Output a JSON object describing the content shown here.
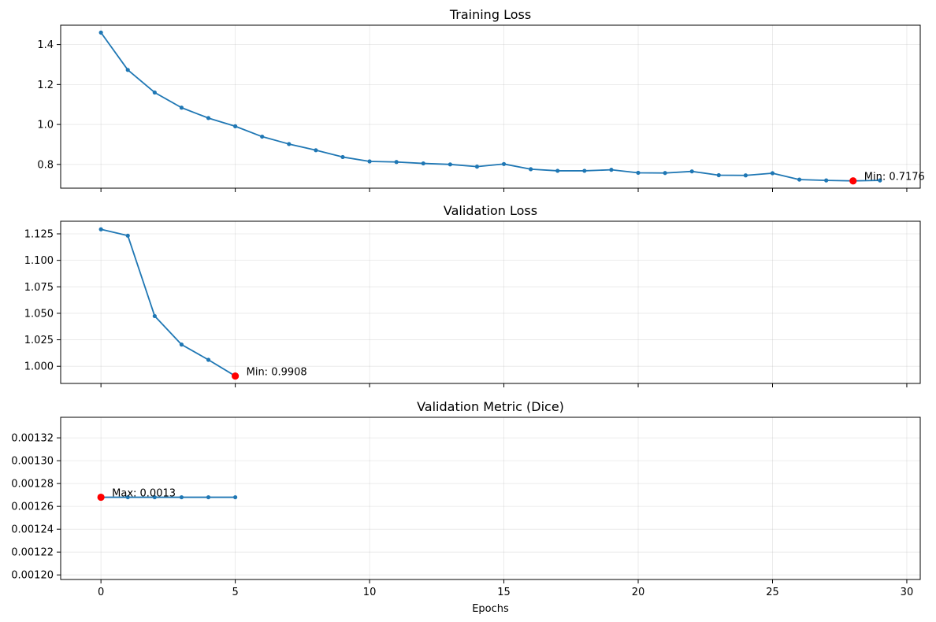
{
  "chart_data": [
    {
      "type": "line",
      "title": "Training Loss",
      "xlabel": "",
      "ylabel": "",
      "xlim": [
        -1.5,
        30.5
      ],
      "ylim": [
        0.681,
        1.497
      ],
      "xticks": [
        0,
        5,
        10,
        15,
        20,
        25,
        30
      ],
      "xtick_labels_visible": false,
      "yticks": [
        0.8,
        1.0,
        1.2,
        1.4
      ],
      "ytick_labels": [
        "0.8",
        "1.0",
        "1.2",
        "1.4"
      ],
      "grid": true,
      "color": "#1f77b4",
      "x": [
        0,
        1,
        2,
        3,
        4,
        5,
        6,
        7,
        8,
        9,
        10,
        11,
        12,
        13,
        14,
        15,
        16,
        17,
        18,
        19,
        20,
        21,
        22,
        23,
        24,
        25,
        26,
        27,
        28,
        29
      ],
      "values": [
        1.46,
        1.273,
        1.16,
        1.084,
        1.032,
        0.991,
        0.939,
        0.902,
        0.871,
        0.837,
        0.815,
        0.812,
        0.805,
        0.8,
        0.789,
        0.802,
        0.776,
        0.768,
        0.768,
        0.773,
        0.758,
        0.757,
        0.765,
        0.746,
        0.745,
        0.756,
        0.724,
        0.72,
        0.7176,
        0.72
      ],
      "highlight": {
        "x": 28,
        "y": 0.7176,
        "color": "#ff0000",
        "label": "Min: 0.7176"
      }
    },
    {
      "type": "line",
      "title": "Validation Loss",
      "xlabel": "",
      "ylabel": "",
      "xlim": [
        -1.5,
        30.5
      ],
      "ylim": [
        0.9838,
        1.1369
      ],
      "xticks": [
        0,
        5,
        10,
        15,
        20,
        25,
        30
      ],
      "xtick_labels_visible": false,
      "yticks": [
        1.0,
        1.025,
        1.05,
        1.075,
        1.1,
        1.125
      ],
      "ytick_labels": [
        "1.000",
        "1.025",
        "1.050",
        "1.075",
        "1.100",
        "1.125"
      ],
      "grid": true,
      "color": "#1f77b4",
      "x": [
        0,
        1,
        2,
        3,
        4,
        5
      ],
      "values": [
        1.1293,
        1.1233,
        1.0474,
        1.0205,
        1.0061,
        0.9908
      ],
      "highlight": {
        "x": 5,
        "y": 0.9908,
        "color": "#ff0000",
        "label": "Min: 0.9908"
      }
    },
    {
      "type": "line",
      "title": "Validation Metric (Dice)",
      "xlabel": "Epochs",
      "ylabel": "",
      "xlim": [
        -1.5,
        30.5
      ],
      "ylim": [
        0.001196,
        0.001338
      ],
      "xticks": [
        0,
        5,
        10,
        15,
        20,
        25,
        30
      ],
      "xtick_labels_visible": true,
      "xtick_labels": [
        "0",
        "5",
        "10",
        "15",
        "20",
        "25",
        "30"
      ],
      "yticks": [
        0.0012,
        0.00122,
        0.00124,
        0.00126,
        0.00128,
        0.0013,
        0.00132
      ],
      "ytick_labels": [
        "0.00120",
        "0.00122",
        "0.00124",
        "0.00126",
        "0.00128",
        "0.00130",
        "0.00132"
      ],
      "grid": true,
      "color": "#1f77b4",
      "x": [
        0,
        1,
        2,
        3,
        4,
        5
      ],
      "values": [
        0.001268,
        0.001268,
        0.001268,
        0.001268,
        0.001268,
        0.001268
      ],
      "highlight": {
        "x": 0,
        "y": 0.001268,
        "color": "#ff0000",
        "label": "Max: 0.0013"
      }
    }
  ]
}
